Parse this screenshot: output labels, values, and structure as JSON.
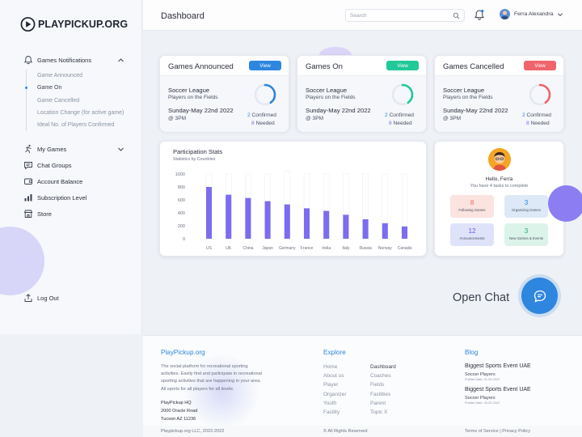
{
  "app": {
    "logo_text": "PLAYPICKUP.ORG"
  },
  "header": {
    "title": "Dashboard",
    "search_placeholder": "Search",
    "user_name": "Ferra Alexandra"
  },
  "sidebar": {
    "notifications": {
      "label": "Games Notifications",
      "items": [
        "Game Announced",
        "Game On",
        "Game Cancelled",
        "Location Change (for active game)",
        "Ideal No. of Players Confirmed"
      ],
      "active_index": 1
    },
    "items": [
      {
        "label": "My Games",
        "icon": "running-icon"
      },
      {
        "label": "Chat Groups",
        "icon": "chat-icon"
      },
      {
        "label": "Account Balance",
        "icon": "wallet-icon"
      },
      {
        "label": "Subscription Level",
        "icon": "bars-icon"
      },
      {
        "label": "Store",
        "icon": "store-icon"
      }
    ],
    "logout_label": "Log Out"
  },
  "game_cards": [
    {
      "title": "Games Announced",
      "button": "View",
      "color": "#2e86de",
      "league": "Soccer League",
      "players": "Players on the Fields",
      "date": "Sunday-May 22nd 2022",
      "time": "@ 3PM",
      "confirmed_num": "2",
      "confirmed_label": "Confirmed",
      "needed_num": "8",
      "needed_label": "Needed",
      "progress": 0.4
    },
    {
      "title": "Games On",
      "button": "View",
      "color": "#20c997",
      "league": "Soccer League",
      "players": "Players on the Fields",
      "date": "Sunday-May 22nd 2022",
      "time": "@ 3PM",
      "confirmed_num": "2",
      "confirmed_label": "Confirmed",
      "needed_num": "8",
      "needed_label": "Needed",
      "progress": 0.4
    },
    {
      "title": "Games Cancelled",
      "button": "View",
      "color": "#f0646c",
      "league": "Soccer League",
      "players": "Players on the Fields",
      "date": "Sunday-May 22nd 2022",
      "time": "@ 3PM",
      "confirmed_num": "2",
      "confirmed_label": "Confirmed",
      "needed_num": "8",
      "needed_label": "Needed",
      "progress": 0.4
    }
  ],
  "chart_data": {
    "type": "bar",
    "title": "Participation Stats",
    "subtitle": "Statistics by Countries",
    "categories": [
      "US",
      "UK",
      "China",
      "Japan",
      "Germany",
      "France",
      "India",
      "Italy",
      "Russia",
      "Norway",
      "Canada"
    ],
    "values": [
      800,
      680,
      630,
      580,
      530,
      470,
      430,
      370,
      300,
      240,
      190
    ],
    "max_values": [
      1000,
      1000,
      1000,
      1000,
      1050,
      1000,
      1000,
      1000,
      1000,
      1000,
      1000
    ],
    "yticks": [
      0,
      200,
      400,
      600,
      800,
      1000
    ],
    "ylim": [
      0,
      1000
    ],
    "bar_color": "#7b6cf0"
  },
  "tasks": {
    "greeting": "Hello, Ferra",
    "summary": "You have 4 tasks to complete",
    "tiles": [
      {
        "num": "8",
        "label": "Following Games",
        "bg": "#fbe3df",
        "fg": "#f0646c"
      },
      {
        "num": "3",
        "label": "Organizing Games",
        "bg": "#dde9f7",
        "fg": "#2e86de"
      },
      {
        "num": "12",
        "label": "Announcements",
        "bg": "#dfe3fa",
        "fg": "#5a5fd6"
      },
      {
        "num": "3",
        "label": "New Games & Events",
        "bg": "#dcf3ea",
        "fg": "#20a878"
      }
    ]
  },
  "chat": {
    "label": "Open Chat"
  },
  "footer": {
    "brand": "PlayPickup.org",
    "description_lines": [
      "The social platform for recreational sporting",
      "activities. Easily find and participate in recreational",
      "sporting activities that are happening in your area.",
      "All sports for all players for all levels."
    ],
    "address_lines": [
      "PlayPickup HQ",
      "2000 Oracle Road",
      "Tucson AZ 11236"
    ],
    "explore_title": "Explore",
    "explore_col1": [
      "Home",
      "About us",
      "Player",
      "Organizer",
      "Youth",
      "Facility"
    ],
    "explore_col2": [
      "Dashboard",
      "Coaches",
      "Fields",
      "Facilities",
      "Parent",
      "Topic X"
    ],
    "blog_title": "Blog",
    "blog_posts": [
      {
        "title": "Biggest Sports Event UAE",
        "sub": "Soccer Players",
        "date": "Publish Date: 21-03-2022"
      },
      {
        "title": "Biggest Sports Event UAE",
        "sub": "Soccer Players",
        "date": "Publish Date: 25-03-2022"
      }
    ],
    "copyright": "Playpickup.org LLC, 2022-2022",
    "rights": "© All Rights Reserved",
    "legal": "Terms of Service | Privacy Policy"
  }
}
